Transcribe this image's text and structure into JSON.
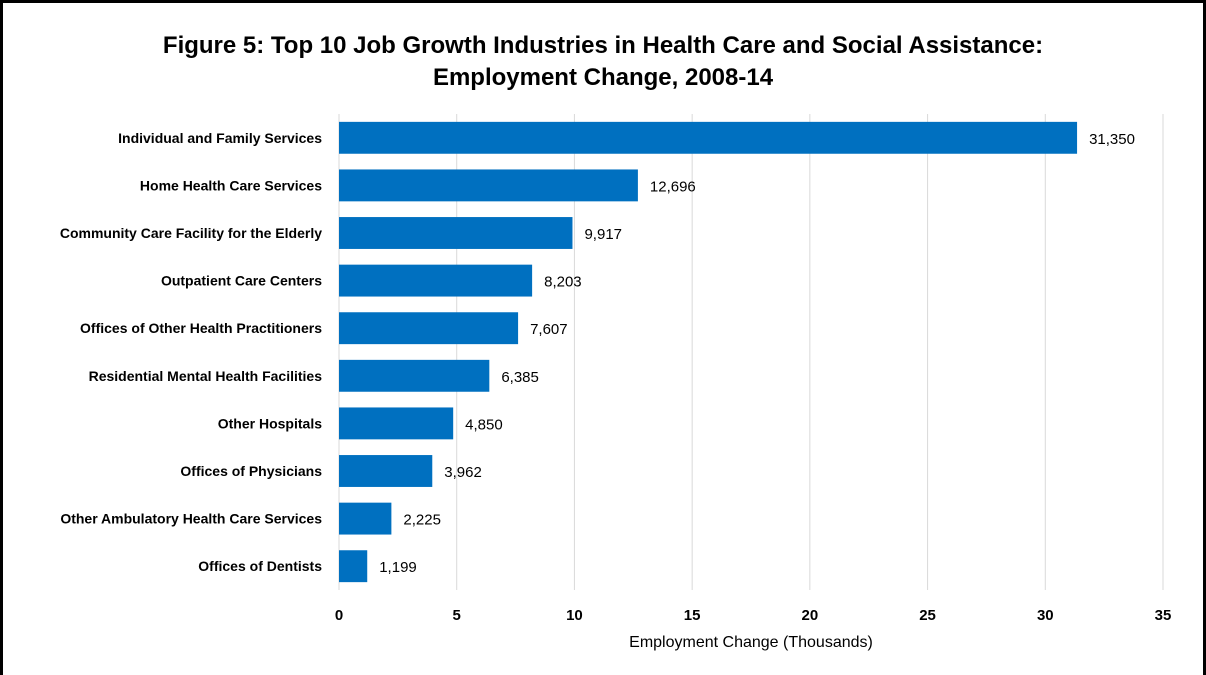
{
  "chart_data": {
    "type": "bar",
    "orientation": "horizontal",
    "title": "Figure 5: Top 10 Job Growth Industries in Health Care and Social Assistance:",
    "subtitle": "Employment Change, 2008-14",
    "xlabel": "Employment Change (Thousands)",
    "ylabel": "",
    "xlim": [
      0,
      35
    ],
    "xticks": [
      "0",
      "5",
      "10",
      "15",
      "20",
      "25",
      "30",
      "35"
    ],
    "grid": true,
    "bar_color": "#0070C0",
    "categories": [
      "Individual and Family Services",
      "Home Health Care Services",
      "Community Care Facility for the Elderly",
      "Outpatient Care Centers",
      "Offices of Other Health Practitioners",
      "Residential Mental Health Facilities",
      "Other Hospitals",
      "Offices of Physicians",
      "Other Ambulatory Health Care Services",
      "Offices of Dentists"
    ],
    "values": [
      31.35,
      12.696,
      9.917,
      8.203,
      7.607,
      6.385,
      4.85,
      3.962,
      2.225,
      1.199
    ],
    "data_labels": [
      "31,350",
      "12,696",
      "9,917",
      "8,203",
      "7,607",
      "6,385",
      "4,850",
      "3,962",
      "2,225",
      "1,199"
    ]
  }
}
